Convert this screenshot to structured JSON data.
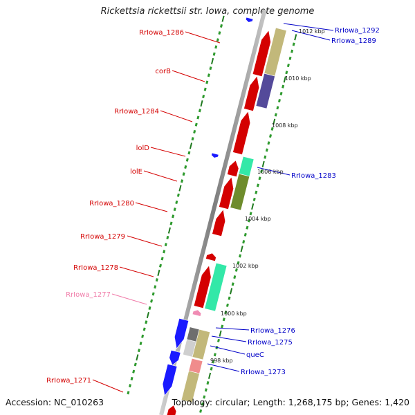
{
  "title": "Rickettsia rickettsii str. Iowa, complete genome",
  "footer": {
    "accession": "Accession: NC_010263",
    "topology": "Topology: circular; Length: 1,268,175 bp; Genes: 1,420"
  },
  "colors": {
    "background": "#ffffff",
    "backbone": "#8c8c8c",
    "tick_major": "#1f7a1f",
    "tick_minor": "#2e9a2e",
    "label_forward": "#d40000",
    "label_reverse": "#0000c8",
    "label_pseudo": "#f07aa8"
  },
  "scale_labels": [
    "1012 kbp",
    "1010 kbp",
    "1008 kbp",
    "1006 kbp",
    "1004 kbp",
    "1002 kbp",
    "1000 kbp",
    "998 kbp"
  ],
  "gene_labels": {
    "left": [
      "RrIowa_1286",
      "corB",
      "RrIowa_1284",
      "lolD",
      "lolE",
      "RrIowa_1280",
      "RrIowa_1279",
      "RrIowa_1278",
      "RrIowa_1277",
      "RrIowa_1271"
    ],
    "right": [
      "RrIowa_1292",
      "RrIowa_1289",
      "RrIowa_1283",
      "RrIowa_1276",
      "RrIowa_1275",
      "queC",
      "RrIowa_1273"
    ]
  }
}
